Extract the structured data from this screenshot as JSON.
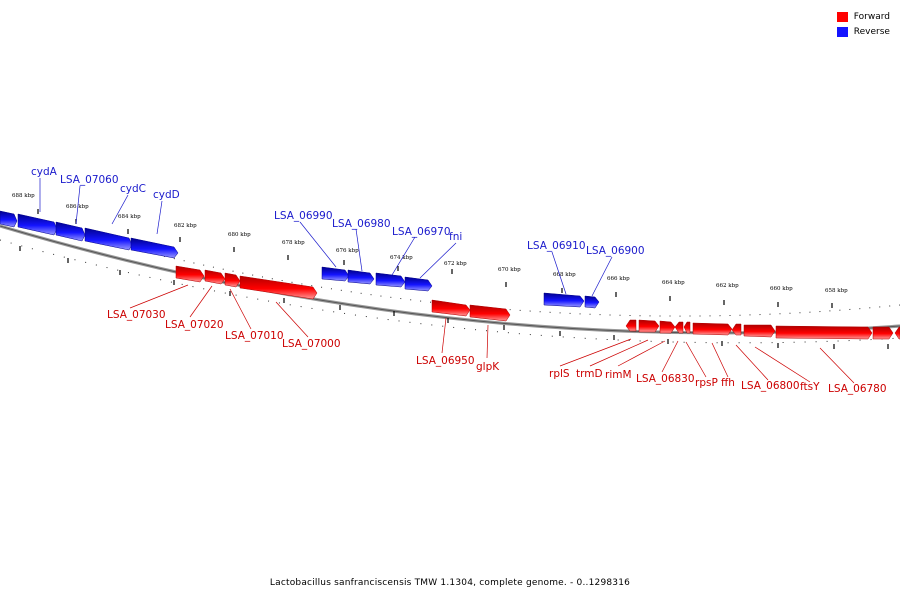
{
  "legend": {
    "items": [
      {
        "label": "Forward",
        "color": "#ff0000"
      },
      {
        "label": "Reverse",
        "color": "#1414ff"
      }
    ]
  },
  "caption": "Lactobacillus sanfranciscensis TMW 1.1304, complete genome. - 0..1298316",
  "colors": {
    "forward": "#ff0000",
    "forward_dark": "#b00000",
    "forward_light": "#ff8c8c",
    "reverse": "#1414ff",
    "reverse_dark": "#00008c",
    "reverse_light": "#8c8cff",
    "backbone": "#777777"
  },
  "ticks": [
    {
      "label": "688 kbp"
    },
    {
      "label": "686 kbp"
    },
    {
      "label": "684 kbp"
    },
    {
      "label": "682 kbp"
    },
    {
      "label": "680 kbp"
    },
    {
      "label": "678 kbp"
    },
    {
      "label": "676 kbp"
    },
    {
      "label": "674 kbp"
    },
    {
      "label": "672 kbp"
    },
    {
      "label": "670 kbp"
    },
    {
      "label": "668 kbp"
    },
    {
      "label": "666 kbp"
    },
    {
      "label": "664 kbp"
    },
    {
      "label": "662 kbp"
    },
    {
      "label": "660 kbp"
    },
    {
      "label": "658 kbp"
    }
  ],
  "reverse_labels": [
    {
      "label": "cydA"
    },
    {
      "label": "LSA_07060"
    },
    {
      "label": "cydC"
    },
    {
      "label": "cydD"
    },
    {
      "label": "LSA_06990"
    },
    {
      "label": "LSA_06980"
    },
    {
      "label": "LSA_06970"
    },
    {
      "label": "fni"
    },
    {
      "label": "LSA_06910"
    },
    {
      "label": "LSA_06900"
    }
  ],
  "forward_labels": [
    {
      "label": "LSA_07030"
    },
    {
      "label": "LSA_07020"
    },
    {
      "label": "LSA_07010"
    },
    {
      "label": "LSA_07000"
    },
    {
      "label": "LSA_06950"
    },
    {
      "label": "glpK"
    },
    {
      "label": "rplS"
    },
    {
      "label": "trmD"
    },
    {
      "label": "rimM"
    },
    {
      "label": "LSA_06830"
    },
    {
      "label": "rpsP"
    },
    {
      "label": "ffh"
    },
    {
      "label": "LSA_06800"
    },
    {
      "label": "ftsY"
    },
    {
      "label": "LSA_06780"
    }
  ]
}
